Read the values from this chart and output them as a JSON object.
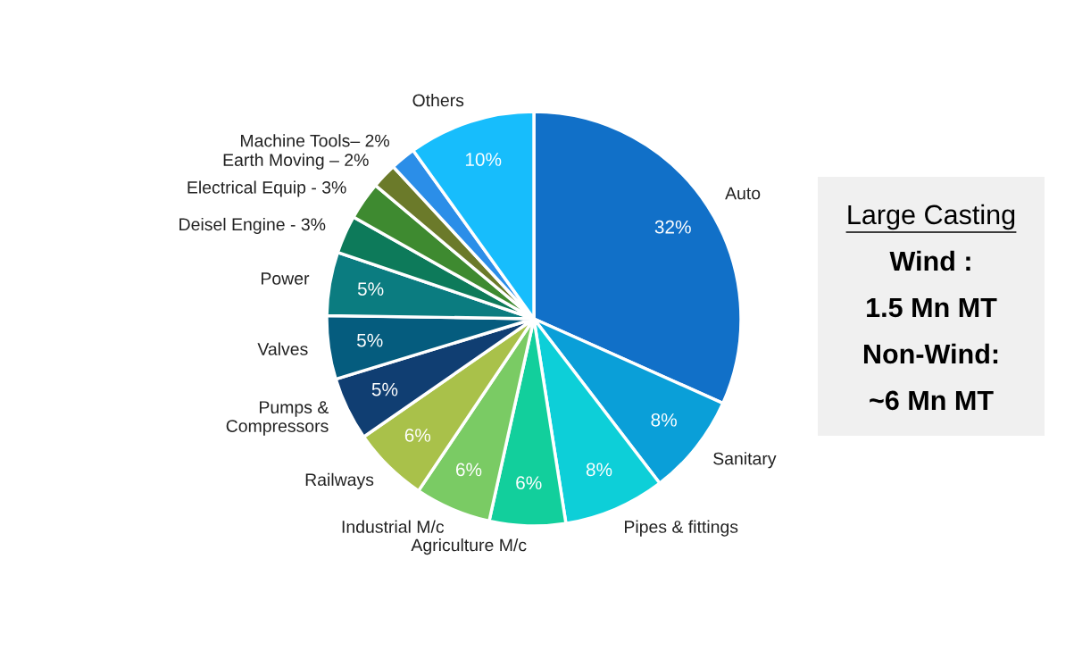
{
  "chart_data": {
    "type": "pie",
    "categories": [
      "Auto",
      "Sanitary",
      "Pipes & fittings",
      "Agriculture M/c",
      "Industrial M/c",
      "Railways",
      "Pumps &\nCompressors",
      "Valves",
      "Power",
      "Deisel Engine - 3%",
      "Electrical Equip - 3%",
      "Earth Moving – 2%",
      "Machine Tools– 2%",
      "Others"
    ],
    "values": [
      32,
      8,
      8,
      6,
      6,
      6,
      5,
      5,
      5,
      3,
      3,
      2,
      2,
      10
    ],
    "value_labels": [
      "32%",
      "8%",
      "8%",
      "6%",
      "6%",
      "6%",
      "5%",
      "5%",
      "5%",
      null,
      null,
      null,
      null,
      "10%"
    ],
    "colors": [
      "#1170c8",
      "#0a9fd8",
      "#0dcfd8",
      "#12cf9c",
      "#7acb64",
      "#a9c14a",
      "#103e72",
      "#055c7e",
      "#0b7c80",
      "#0d7a5a",
      "#3e8a30",
      "#6b7a2a",
      "#2b8ee8",
      "#17bdfc"
    ],
    "annotations": [
      "Large Casting",
      "Wind :",
      "1.5 Mn MT",
      "Non-Wind:",
      "~6 Mn MT"
    ],
    "legend": false
  }
}
